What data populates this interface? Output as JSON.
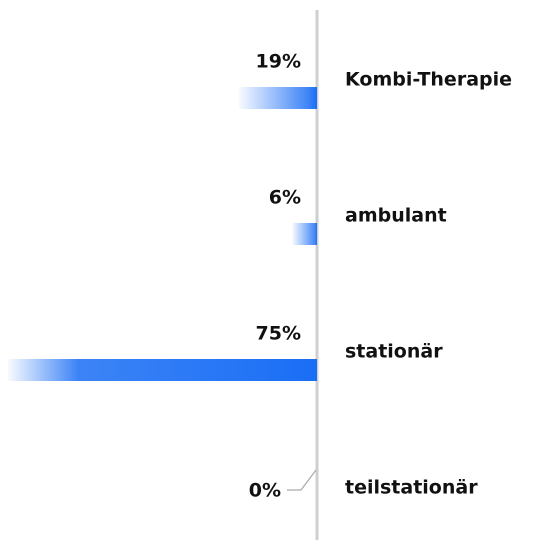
{
  "chart_data": {
    "type": "bar",
    "orientation": "horizontal",
    "categories": [
      "Kombi-Therapie",
      "ambulant",
      "stationär",
      "teilstationär"
    ],
    "values": [
      19,
      6,
      75,
      0
    ],
    "value_labels": [
      "19%",
      "6%",
      "75%",
      "0%"
    ],
    "color": "#1a6ef5"
  }
}
